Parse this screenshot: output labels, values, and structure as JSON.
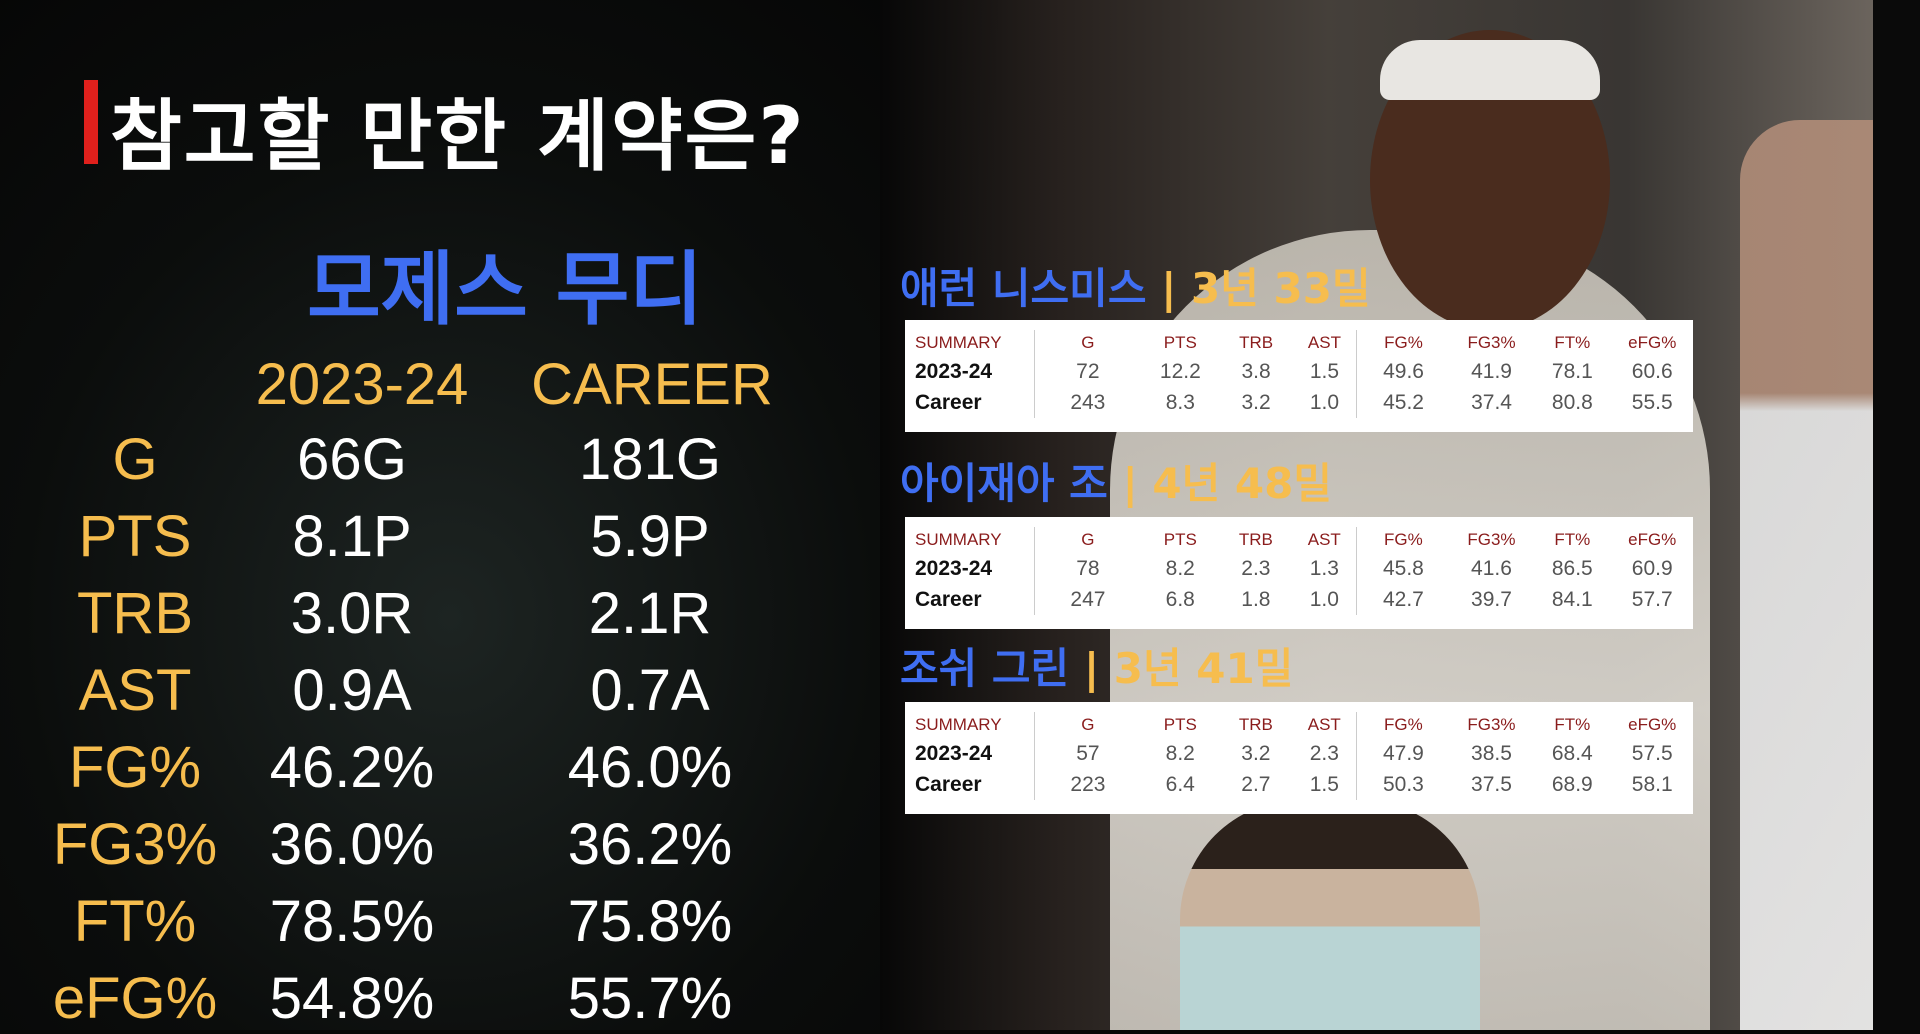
{
  "title": "참고할 만한 계약은?",
  "main_player": {
    "name": "모제스 무디",
    "columns": [
      "2023-24",
      "CAREER"
    ],
    "rows": [
      {
        "label": "G",
        "season": "66G",
        "career": "181G"
      },
      {
        "label": "PTS",
        "season": "8.1P",
        "career": "5.9P"
      },
      {
        "label": "TRB",
        "season": "3.0R",
        "career": "2.1R"
      },
      {
        "label": "AST",
        "season": "0.9A",
        "career": "0.7A"
      },
      {
        "label": "FG%",
        "season": "46.2%",
        "career": "46.0%"
      },
      {
        "label": "FG3%",
        "season": "36.0%",
        "career": "36.2%"
      },
      {
        "label": "FT%",
        "season": "78.5%",
        "career": "75.8%"
      },
      {
        "label": "eFG%",
        "season": "54.8%",
        "career": "55.7%"
      }
    ]
  },
  "table_headers": [
    "SUMMARY",
    "G",
    "PTS",
    "TRB",
    "AST",
    "FG%",
    "FG3%",
    "FT%",
    "eFG%"
  ],
  "comparisons": [
    {
      "name": "애런 니스미스",
      "contract": "| 3년 33밀",
      "rows": [
        [
          "2023-24",
          "72",
          "12.2",
          "3.8",
          "1.5",
          "49.6",
          "41.9",
          "78.1",
          "60.6"
        ],
        [
          "Career",
          "243",
          "8.3",
          "3.2",
          "1.0",
          "45.2",
          "37.4",
          "80.8",
          "55.5"
        ]
      ]
    },
    {
      "name": "아이재아 조",
      "contract": "| 4년 48밀",
      "rows": [
        [
          "2023-24",
          "78",
          "8.2",
          "2.3",
          "1.3",
          "45.8",
          "41.6",
          "86.5",
          "60.9"
        ],
        [
          "Career",
          "247",
          "6.8",
          "1.8",
          "1.0",
          "42.7",
          "39.7",
          "84.1",
          "57.7"
        ]
      ]
    },
    {
      "name": "조쉬 그린",
      "contract": "| 3년 41밀",
      "rows": [
        [
          "2023-24",
          "57",
          "8.2",
          "3.2",
          "2.3",
          "47.9",
          "38.5",
          "68.4",
          "57.5"
        ],
        [
          "Career",
          "223",
          "6.4",
          "2.7",
          "1.5",
          "50.3",
          "37.5",
          "68.9",
          "58.1"
        ]
      ]
    }
  ],
  "colors": {
    "accent_red": "#e0201c",
    "name_blue": "#3f6ef2",
    "label_gold": "#f6bd4e",
    "header_red": "#8a1c1c"
  }
}
